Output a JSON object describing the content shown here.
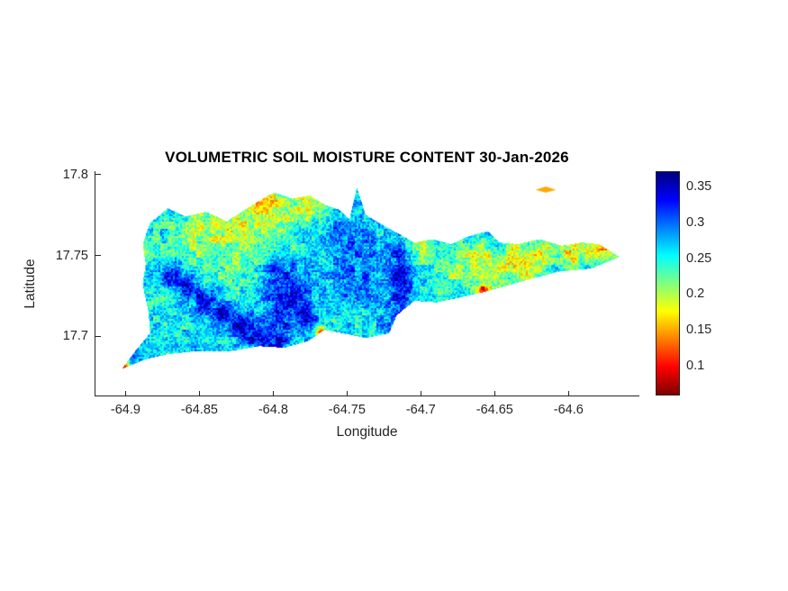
{
  "chart_data": {
    "type": "heatmap",
    "title": "VOLUMETRIC SOIL MOISTURE CONTENT 30-Jan-2026",
    "xlabel": "Longitude",
    "ylabel": "Latitude",
    "x_ticks": [
      -64.9,
      -64.85,
      -64.8,
      -64.75,
      -64.7,
      -64.65,
      -64.6
    ],
    "y_ticks": [
      17.7,
      17.75,
      17.8
    ],
    "xlim": [
      -64.921,
      -64.552
    ],
    "ylim": [
      17.663,
      17.802
    ],
    "grid": false,
    "colorbar": {
      "position": "right",
      "colormap": "jet-reversed",
      "min": 0.06,
      "max": 0.37,
      "ticks": [
        0.1,
        0.15,
        0.2,
        0.25,
        0.3,
        0.35
      ]
    },
    "value_units": "volumetric soil moisture (m3/m3)",
    "base_value": 0.26,
    "noise_amplitude": 0.032,
    "island_boundary": [
      [
        -64.889,
        17.757
      ],
      [
        -64.884,
        17.77
      ],
      [
        -64.872,
        17.779
      ],
      [
        -64.86,
        17.774
      ],
      [
        -64.846,
        17.777
      ],
      [
        -64.832,
        17.771
      ],
      [
        -64.815,
        17.781
      ],
      [
        -64.8,
        17.789
      ],
      [
        -64.788,
        17.785
      ],
      [
        -64.776,
        17.787
      ],
      [
        -64.765,
        17.781
      ],
      [
        -64.755,
        17.778
      ],
      [
        -64.749,
        17.772
      ],
      [
        -64.744,
        17.792
      ],
      [
        -64.738,
        17.775
      ],
      [
        -64.729,
        17.77
      ],
      [
        -64.717,
        17.764
      ],
      [
        -64.705,
        17.758
      ],
      [
        -64.693,
        17.76
      ],
      [
        -64.68,
        17.757
      ],
      [
        -64.668,
        17.762
      ],
      [
        -64.655,
        17.765
      ],
      [
        -64.647,
        17.758
      ],
      [
        -64.635,
        17.757
      ],
      [
        -64.62,
        17.76
      ],
      [
        -64.605,
        17.756
      ],
      [
        -64.592,
        17.758
      ],
      [
        -64.58,
        17.757
      ],
      [
        -64.566,
        17.749
      ],
      [
        -64.585,
        17.742
      ],
      [
        -64.607,
        17.74
      ],
      [
        -64.632,
        17.734
      ],
      [
        -64.655,
        17.728
      ],
      [
        -64.674,
        17.724
      ],
      [
        -64.69,
        17.721
      ],
      [
        -64.705,
        17.722
      ],
      [
        -64.717,
        17.713
      ],
      [
        -64.722,
        17.702
      ],
      [
        -64.738,
        17.699
      ],
      [
        -64.754,
        17.702
      ],
      [
        -64.766,
        17.704
      ],
      [
        -64.777,
        17.697
      ],
      [
        -64.793,
        17.693
      ],
      [
        -64.81,
        17.694
      ],
      [
        -64.83,
        17.691
      ],
      [
        -64.853,
        17.691
      ],
      [
        -64.872,
        17.689
      ],
      [
        -64.887,
        17.686
      ],
      [
        -64.903,
        17.68
      ],
      [
        -64.894,
        17.691
      ],
      [
        -64.884,
        17.702
      ],
      [
        -64.885,
        17.715
      ],
      [
        -64.889,
        17.732
      ],
      [
        -64.887,
        17.745
      ]
    ],
    "islet_boundary": [
      [
        -64.623,
        17.7905
      ],
      [
        -64.616,
        17.7925
      ],
      [
        -64.609,
        17.7905
      ],
      [
        -64.616,
        17.7888
      ]
    ],
    "islet_value": 0.15,
    "patch_fields": [
      "lon",
      "lat",
      "radius_deg",
      "value"
    ],
    "moisture_patches": [
      [
        -64.835,
        17.767,
        0.03,
        0.19
      ],
      [
        -64.805,
        17.778,
        0.02,
        0.17
      ],
      [
        -64.775,
        17.781,
        0.014,
        0.18
      ],
      [
        -64.858,
        17.76,
        0.015,
        0.21
      ],
      [
        -64.82,
        17.748,
        0.018,
        0.22
      ],
      [
        -64.888,
        17.752,
        0.01,
        0.22
      ],
      [
        -64.881,
        17.722,
        0.008,
        0.24
      ],
      [
        -64.694,
        17.745,
        0.016,
        0.24
      ],
      [
        -64.676,
        17.74,
        0.014,
        0.22
      ],
      [
        -64.7,
        17.756,
        0.01,
        0.21
      ],
      [
        -64.685,
        17.725,
        0.008,
        0.22
      ],
      [
        -64.66,
        17.748,
        0.014,
        0.19
      ],
      [
        -64.64,
        17.748,
        0.014,
        0.175
      ],
      [
        -64.618,
        17.75,
        0.014,
        0.17
      ],
      [
        -64.598,
        17.752,
        0.012,
        0.17
      ],
      [
        -64.578,
        17.752,
        0.01,
        0.165
      ],
      [
        -64.655,
        17.733,
        0.01,
        0.19
      ],
      [
        -64.63,
        17.74,
        0.008,
        0.18
      ],
      [
        -64.869,
        17.738,
        0.008,
        0.345
      ],
      [
        -64.858,
        17.73,
        0.008,
        0.345
      ],
      [
        -64.847,
        17.722,
        0.008,
        0.345
      ],
      [
        -64.836,
        17.714,
        0.008,
        0.345
      ],
      [
        -64.824,
        17.707,
        0.009,
        0.345
      ],
      [
        -64.812,
        17.7,
        0.009,
        0.34
      ],
      [
        -64.799,
        17.697,
        0.009,
        0.34
      ],
      [
        -64.796,
        17.737,
        0.014,
        0.32
      ],
      [
        -64.788,
        17.723,
        0.013,
        0.335
      ],
      [
        -64.797,
        17.71,
        0.012,
        0.33
      ],
      [
        -64.78,
        17.712,
        0.01,
        0.33
      ],
      [
        -64.757,
        17.762,
        0.016,
        0.305
      ],
      [
        -64.743,
        17.748,
        0.016,
        0.3
      ],
      [
        -64.752,
        17.732,
        0.014,
        0.295
      ],
      [
        -64.734,
        17.73,
        0.012,
        0.3
      ],
      [
        -64.717,
        17.752,
        0.008,
        0.32
      ],
      [
        -64.715,
        17.738,
        0.009,
        0.335
      ],
      [
        -64.714,
        17.724,
        0.009,
        0.335
      ],
      [
        -64.716,
        17.71,
        0.008,
        0.33
      ],
      [
        -64.722,
        17.712,
        0.008,
        0.29
      ],
      [
        -64.896,
        17.69,
        0.006,
        0.3
      ],
      [
        -64.648,
        17.757,
        0.007,
        0.26
      ],
      [
        -64.61,
        17.744,
        0.006,
        0.25
      ],
      [
        -64.902,
        17.681,
        0.0035,
        0.075
      ],
      [
        -64.768,
        17.703,
        0.004,
        0.12
      ],
      [
        -64.659,
        17.729,
        0.0035,
        0.09
      ]
    ]
  }
}
